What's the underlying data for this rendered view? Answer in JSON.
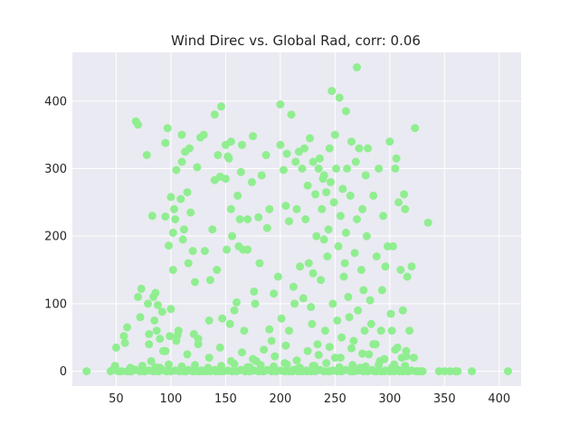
{
  "chart_data": {
    "type": "scatter",
    "title": "Wind Direc vs. Global Rad, corr: 0.06",
    "xlabel": "",
    "ylabel": "",
    "xlim": [
      10,
      420
    ],
    "ylim": [
      -22,
      472
    ],
    "xticks": [
      50,
      100,
      150,
      200,
      250,
      300,
      350,
      400
    ],
    "yticks": [
      0,
      100,
      200,
      300,
      400
    ],
    "xtick_labels": [
      "50",
      "100",
      "150",
      "200",
      "250",
      "300",
      "350",
      "400"
    ],
    "ytick_labels": [
      "0",
      "100",
      "200",
      "300",
      "400"
    ],
    "grid": true,
    "legend": "none",
    "marker_color": "#90ee90",
    "background_color": "#eaeaf2",
    "grid_color": "#ffffff",
    "points": [
      [
        23,
        0
      ],
      [
        45,
        0
      ],
      [
        47,
        2
      ],
      [
        49,
        8
      ],
      [
        50,
        35
      ],
      [
        52,
        0
      ],
      [
        55,
        0
      ],
      [
        57,
        52
      ],
      [
        58,
        42
      ],
      [
        60,
        65
      ],
      [
        62,
        0
      ],
      [
        63,
        5
      ],
      [
        65,
        3
      ],
      [
        68,
        370
      ],
      [
        70,
        365
      ],
      [
        70,
        110
      ],
      [
        72,
        80
      ],
      [
        73,
        122
      ],
      [
        75,
        2
      ],
      [
        76,
        0
      ],
      [
        78,
        320
      ],
      [
        79,
        100
      ],
      [
        80,
        55
      ],
      [
        80,
        40
      ],
      [
        82,
        15
      ],
      [
        83,
        230
      ],
      [
        84,
        110
      ],
      [
        85,
        75
      ],
      [
        86,
        116
      ],
      [
        87,
        60
      ],
      [
        88,
        98
      ],
      [
        89,
        0
      ],
      [
        90,
        48
      ],
      [
        90,
        5
      ],
      [
        92,
        88
      ],
      [
        93,
        30
      ],
      [
        95,
        338
      ],
      [
        95,
        229
      ],
      [
        96,
        0
      ],
      [
        97,
        360
      ],
      [
        98,
        186
      ],
      [
        99,
        52
      ],
      [
        100,
        258
      ],
      [
        100,
        92
      ],
      [
        102,
        205
      ],
      [
        102,
        150
      ],
      [
        103,
        240
      ],
      [
        104,
        225
      ],
      [
        105,
        298
      ],
      [
        106,
        53
      ],
      [
        107,
        60
      ],
      [
        108,
        0
      ],
      [
        109,
        255
      ],
      [
        110,
        350
      ],
      [
        110,
        310
      ],
      [
        111,
        195
      ],
      [
        112,
        210
      ],
      [
        113,
        325
      ],
      [
        114,
        0
      ],
      [
        115,
        265
      ],
      [
        116,
        160
      ],
      [
        117,
        330
      ],
      [
        118,
        235
      ],
      [
        120,
        178
      ],
      [
        121,
        55
      ],
      [
        122,
        132
      ],
      [
        124,
        302
      ],
      [
        125,
        48
      ],
      [
        126,
        0
      ],
      [
        127,
        346
      ],
      [
        128,
        0
      ],
      [
        130,
        350
      ],
      [
        131,
        178
      ],
      [
        133,
        2
      ],
      [
        135,
        75
      ],
      [
        136,
        135
      ],
      [
        138,
        210
      ],
      [
        140,
        380
      ],
      [
        140,
        283
      ],
      [
        141,
        0
      ],
      [
        142,
        150
      ],
      [
        143,
        320
      ],
      [
        145,
        288
      ],
      [
        146,
        392
      ],
      [
        147,
        78
      ],
      [
        148,
        0
      ],
      [
        150,
        335
      ],
      [
        150,
        285
      ],
      [
        151,
        180
      ],
      [
        152,
        318
      ],
      [
        153,
        315
      ],
      [
        154,
        70
      ],
      [
        155,
        340
      ],
      [
        155,
        240
      ],
      [
        156,
        200
      ],
      [
        158,
        90
      ],
      [
        160,
        102
      ],
      [
        161,
        260
      ],
      [
        162,
        185
      ],
      [
        163,
        225
      ],
      [
        164,
        295
      ],
      [
        165,
        335
      ],
      [
        166,
        180
      ],
      [
        167,
        60
      ],
      [
        168,
        0
      ],
      [
        170,
        225
      ],
      [
        170,
        180
      ],
      [
        172,
        6
      ],
      [
        174,
        280
      ],
      [
        175,
        348
      ],
      [
        176,
        118
      ],
      [
        177,
        100
      ],
      [
        178,
        15
      ],
      [
        180,
        228
      ],
      [
        181,
        160
      ],
      [
        182,
        3
      ],
      [
        183,
        290
      ],
      [
        185,
        0
      ],
      [
        187,
        320
      ],
      [
        188,
        212
      ],
      [
        190,
        240
      ],
      [
        190,
        62
      ],
      [
        192,
        45
      ],
      [
        194,
        115
      ],
      [
        196,
        0
      ],
      [
        198,
        140
      ],
      [
        200,
        395
      ],
      [
        200,
        335
      ],
      [
        201,
        78
      ],
      [
        203,
        298
      ],
      [
        204,
        12
      ],
      [
        205,
        245
      ],
      [
        206,
        322
      ],
      [
        208,
        222
      ],
      [
        208,
        60
      ],
      [
        210,
        380
      ],
      [
        211,
        0
      ],
      [
        212,
        125
      ],
      [
        213,
        100
      ],
      [
        214,
        310
      ],
      [
        215,
        240
      ],
      [
        216,
        4
      ],
      [
        217,
        325
      ],
      [
        218,
        155
      ],
      [
        219,
        0
      ],
      [
        220,
        300
      ],
      [
        221,
        108
      ],
      [
        222,
        330
      ],
      [
        223,
        225
      ],
      [
        224,
        0
      ],
      [
        225,
        275
      ],
      [
        226,
        160
      ],
      [
        227,
        345
      ],
      [
        228,
        95
      ],
      [
        229,
        70
      ],
      [
        230,
        145
      ],
      [
        230,
        310
      ],
      [
        231,
        8
      ],
      [
        232,
        262
      ],
      [
        233,
        200
      ],
      [
        234,
        40
      ],
      [
        235,
        300
      ],
      [
        236,
        315
      ],
      [
        237,
        135
      ],
      [
        238,
        240
      ],
      [
        239,
        285
      ],
      [
        240,
        195
      ],
      [
        240,
        290
      ],
      [
        241,
        60
      ],
      [
        242,
        265
      ],
      [
        243,
        170
      ],
      [
        244,
        210
      ],
      [
        245,
        330
      ],
      [
        245,
        0
      ],
      [
        246,
        280
      ],
      [
        247,
        415
      ],
      [
        248,
        100
      ],
      [
        249,
        250
      ],
      [
        250,
        350
      ],
      [
        250,
        20
      ],
      [
        251,
        300
      ],
      [
        252,
        75
      ],
      [
        253,
        185
      ],
      [
        254,
        405
      ],
      [
        255,
        230
      ],
      [
        256,
        50
      ],
      [
        257,
        270
      ],
      [
        258,
        140
      ],
      [
        259,
        160
      ],
      [
        260,
        385
      ],
      [
        260,
        205
      ],
      [
        261,
        300
      ],
      [
        262,
        110
      ],
      [
        263,
        80
      ],
      [
        264,
        260
      ],
      [
        265,
        340
      ],
      [
        266,
        0
      ],
      [
        267,
        45
      ],
      [
        268,
        175
      ],
      [
        269,
        310
      ],
      [
        270,
        450
      ],
      [
        270,
        225
      ],
      [
        271,
        90
      ],
      [
        272,
        330
      ],
      [
        273,
        5
      ],
      [
        274,
        150
      ],
      [
        275,
        240
      ],
      [
        276,
        120
      ],
      [
        277,
        60
      ],
      [
        278,
        290
      ],
      [
        279,
        200
      ],
      [
        280,
        330
      ],
      [
        281,
        25
      ],
      [
        282,
        105
      ],
      [
        283,
        70
      ],
      [
        285,
        260
      ],
      [
        286,
        0
      ],
      [
        287,
        40
      ],
      [
        288,
        170
      ],
      [
        290,
        300
      ],
      [
        291,
        15
      ],
      [
        292,
        60
      ],
      [
        293,
        120
      ],
      [
        294,
        230
      ],
      [
        295,
        0
      ],
      [
        296,
        155
      ],
      [
        298,
        185
      ],
      [
        300,
        340
      ],
      [
        300,
        0
      ],
      [
        301,
        85
      ],
      [
        302,
        60
      ],
      [
        303,
        185
      ],
      [
        304,
        10
      ],
      [
        305,
        300
      ],
      [
        306,
        315
      ],
      [
        307,
        35
      ],
      [
        308,
        250
      ],
      [
        309,
        0
      ],
      [
        310,
        150
      ],
      [
        311,
        20
      ],
      [
        312,
        90
      ],
      [
        313,
        262
      ],
      [
        314,
        240
      ],
      [
        315,
        30
      ],
      [
        316,
        140
      ],
      [
        317,
        0
      ],
      [
        318,
        60
      ],
      [
        320,
        155
      ],
      [
        322,
        20
      ],
      [
        323,
        360
      ],
      [
        325,
        0
      ],
      [
        327,
        0
      ],
      [
        330,
        0
      ],
      [
        335,
        220
      ],
      [
        345,
        0
      ],
      [
        350,
        0
      ],
      [
        355,
        0
      ],
      [
        360,
        0
      ],
      [
        362,
        0
      ],
      [
        375,
        0
      ],
      [
        408,
        0
      ],
      [
        60,
        0
      ],
      [
        64,
        0
      ],
      [
        68,
        2
      ],
      [
        72,
        0
      ],
      [
        76,
        0
      ],
      [
        80,
        1
      ],
      [
        84,
        0
      ],
      [
        88,
        0
      ],
      [
        92,
        2
      ],
      [
        96,
        0
      ],
      [
        100,
        0
      ],
      [
        104,
        1
      ],
      [
        108,
        0
      ],
      [
        112,
        0
      ],
      [
        116,
        2
      ],
      [
        120,
        0
      ],
      [
        124,
        0
      ],
      [
        128,
        1
      ],
      [
        132,
        0
      ],
      [
        136,
        0
      ],
      [
        140,
        2
      ],
      [
        144,
        0
      ],
      [
        148,
        0
      ],
      [
        152,
        1
      ],
      [
        156,
        0
      ],
      [
        160,
        0
      ],
      [
        164,
        2
      ],
      [
        168,
        0
      ],
      [
        172,
        0
      ],
      [
        176,
        1
      ],
      [
        180,
        0
      ],
      [
        184,
        0
      ],
      [
        188,
        2
      ],
      [
        192,
        0
      ],
      [
        196,
        0
      ],
      [
        200,
        1
      ],
      [
        204,
        0
      ],
      [
        208,
        0
      ],
      [
        212,
        2
      ],
      [
        216,
        0
      ],
      [
        220,
        0
      ],
      [
        224,
        1
      ],
      [
        228,
        0
      ],
      [
        232,
        0
      ],
      [
        236,
        2
      ],
      [
        240,
        0
      ],
      [
        244,
        0
      ],
      [
        248,
        1
      ],
      [
        252,
        0
      ],
      [
        256,
        0
      ],
      [
        260,
        2
      ],
      [
        264,
        0
      ],
      [
        268,
        0
      ],
      [
        272,
        1
      ],
      [
        276,
        0
      ],
      [
        280,
        0
      ],
      [
        284,
        2
      ],
      [
        288,
        0
      ],
      [
        292,
        0
      ],
      [
        296,
        1
      ],
      [
        300,
        0
      ],
      [
        304,
        0
      ],
      [
        308,
        2
      ],
      [
        312,
        0
      ],
      [
        316,
        0
      ],
      [
        320,
        1
      ],
      [
        324,
        0
      ],
      [
        328,
        0
      ],
      [
        74,
        8
      ],
      [
        86,
        6
      ],
      [
        98,
        10
      ],
      [
        110,
        7
      ],
      [
        122,
        9
      ],
      [
        134,
        5
      ],
      [
        146,
        8
      ],
      [
        158,
        11
      ],
      [
        170,
        6
      ],
      [
        182,
        9
      ],
      [
        194,
        7
      ],
      [
        206,
        10
      ],
      [
        218,
        5
      ],
      [
        230,
        8
      ],
      [
        242,
        12
      ],
      [
        254,
        6
      ],
      [
        266,
        9
      ],
      [
        278,
        7
      ],
      [
        290,
        10
      ],
      [
        302,
        5
      ],
      [
        314,
        8
      ],
      [
        95,
        30
      ],
      [
        105,
        45
      ],
      [
        115,
        25
      ],
      [
        125,
        40
      ],
      [
        135,
        20
      ],
      [
        145,
        35
      ],
      [
        155,
        15
      ],
      [
        165,
        28
      ],
      [
        175,
        18
      ],
      [
        185,
        32
      ],
      [
        195,
        22
      ],
      [
        205,
        38
      ],
      [
        215,
        16
      ],
      [
        225,
        30
      ],
      [
        235,
        24
      ],
      [
        245,
        36
      ],
      [
        255,
        20
      ],
      [
        265,
        34
      ],
      [
        275,
        26
      ],
      [
        285,
        40
      ],
      [
        295,
        18
      ],
      [
        305,
        32
      ],
      [
        315,
        22
      ]
    ]
  }
}
